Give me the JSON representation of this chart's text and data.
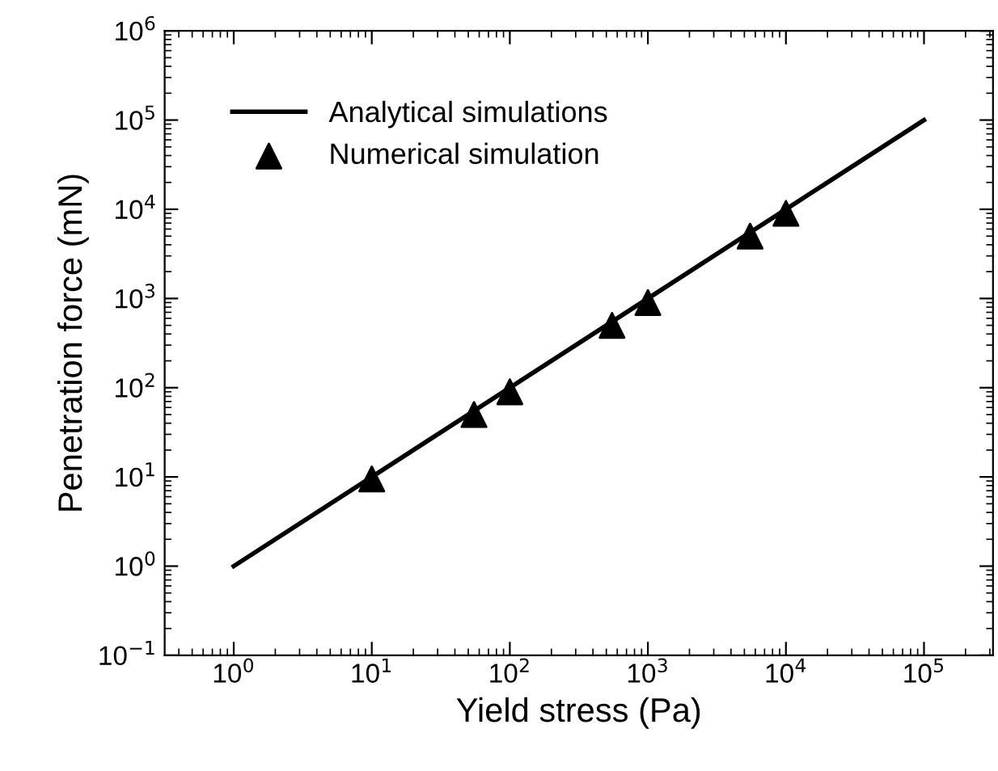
{
  "chart_data": {
    "type": "line",
    "log": "xy",
    "xlabel": "Yield stress (Pa)",
    "ylabel": "Penetration force (mN)",
    "xlim": [
      0.316,
      316228
    ],
    "ylim": [
      0.1,
      1000000
    ],
    "xticks": [
      {
        "value": 1,
        "label": "10$^{0}$"
      },
      {
        "value": 10,
        "label": "10$^{1}$"
      },
      {
        "value": 100,
        "label": "10$^{2}$"
      },
      {
        "value": 1000,
        "label": "10$^{3}$"
      },
      {
        "value": 10000,
        "label": "10$^{4}$"
      },
      {
        "value": 100000,
        "label": "10$^{5}$"
      }
    ],
    "yticks": [
      {
        "value": 0.1,
        "label": "10$^{−1}$"
      },
      {
        "value": 1,
        "label": "10$^{0}$"
      },
      {
        "value": 10,
        "label": "10$^{1}$"
      },
      {
        "value": 100,
        "label": "10$^{2}$"
      },
      {
        "value": 1000,
        "label": "10$^{3}$"
      },
      {
        "value": 10000,
        "label": "10$^{4}$"
      },
      {
        "value": 100000,
        "label": "10$^{5}$"
      },
      {
        "value": 1000000,
        "label": "10$^{6}$"
      }
    ],
    "grid": false,
    "legend": "top left",
    "series": [
      {
        "name": "Analytical simulations",
        "color": "#000000",
        "line_style": "solid",
        "marker": "none",
        "x": [
          1,
          100000
        ],
        "values": [
          1,
          100000
        ]
      },
      {
        "name": "Numerical simulation",
        "type": "scatter",
        "color": "#000000",
        "marker": "triangle",
        "x": [
          10,
          55,
          100,
          550,
          1000,
          5500,
          10000
        ],
        "values": [
          9.5,
          50,
          90,
          500,
          900,
          5000,
          9000
        ]
      }
    ]
  }
}
